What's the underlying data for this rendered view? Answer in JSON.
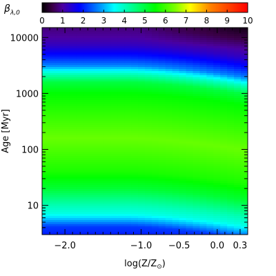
{
  "chart_data": {
    "type": "heatmap",
    "title": "",
    "colorbar": {
      "label_symbol": "β",
      "label_subscript": "λ,0",
      "range": [
        0,
        10
      ],
      "ticks": [
        0,
        1,
        2,
        3,
        4,
        5,
        6,
        7,
        8,
        9,
        10
      ],
      "tick_labels": [
        "0",
        "1",
        "2",
        "3",
        "4",
        "5",
        "6",
        "7",
        "8",
        "9",
        "10"
      ],
      "colormap": "rainbow-black-blue-cyan-green-yellow-red",
      "placement": "top"
    },
    "x_axis": {
      "label": "log(Z/Z",
      "label_symbol": "⊙",
      "label_suffix": ")",
      "range": [
        -2.3,
        0.4
      ],
      "ticks": [
        -2.0,
        -1.0,
        -0.5,
        0.0,
        0.3
      ],
      "tick_labels": [
        "−2.0",
        "−1.0",
        "−0.5",
        "0.0",
        "0.3"
      ]
    },
    "y_axis": {
      "label": "Age [Myr]",
      "scale": "log",
      "range": [
        3,
        15000
      ],
      "ticks": [
        10,
        100,
        1000,
        10000
      ],
      "tick_labels": [
        "10",
        "100",
        "1000",
        "10000"
      ]
    },
    "grid": false,
    "age_profile": [
      {
        "log_age": 0.48,
        "value": 2.0
      },
      {
        "log_age": 0.62,
        "value": 2.2
      },
      {
        "log_age": 0.72,
        "value": 2.9
      },
      {
        "log_age": 0.85,
        "value": 3.7
      },
      {
        "log_age": 1.0,
        "value": 4.1
      },
      {
        "log_age": 1.3,
        "value": 5.1
      },
      {
        "log_age": 1.6,
        "value": 5.7
      },
      {
        "log_age": 2.0,
        "value": 6.1
      },
      {
        "log_age": 2.2,
        "value": 6.3
      },
      {
        "log_age": 2.5,
        "value": 6.0
      },
      {
        "log_age": 2.8,
        "value": 5.7
      },
      {
        "log_age": 3.0,
        "value": 5.5
      },
      {
        "log_age": 3.2,
        "value": 5.0
      },
      {
        "log_age": 3.35,
        "value": 4.0
      },
      {
        "log_age": 3.5,
        "value": 2.7
      },
      {
        "log_age": 3.65,
        "value": 2.0
      },
      {
        "log_age": 3.85,
        "value": 1.3
      },
      {
        "log_age": 4.0,
        "value": 1.0
      },
      {
        "log_age": 4.17,
        "value": 0.8
      }
    ],
    "metallicity_trend": "high-value band shifts to younger ages and upper region darkens toward high metallicity (log Z/Zsun > -0.5)"
  }
}
